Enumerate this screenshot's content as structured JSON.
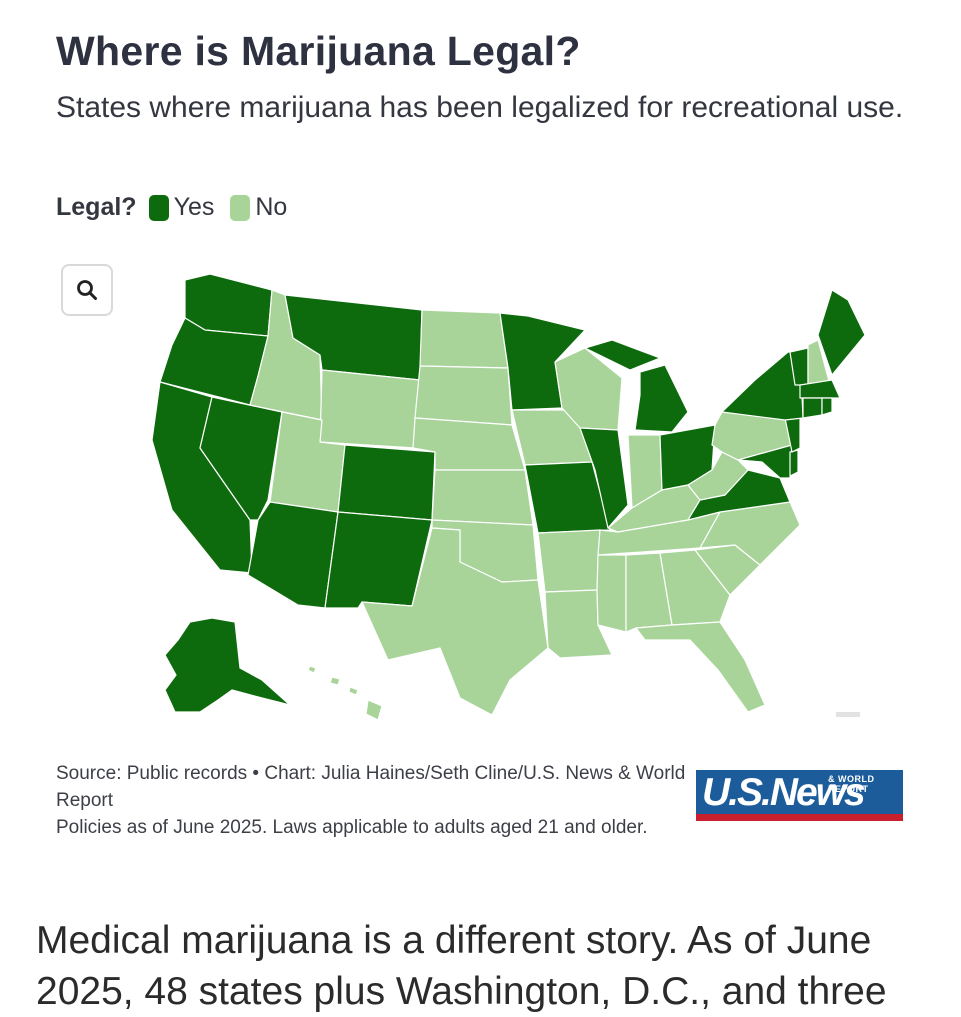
{
  "title": "Where is Marijuana Legal?",
  "subtitle": "States where marijuana has been legalized for recreational use.",
  "legend": {
    "title": "Legal?",
    "items": [
      {
        "label": "Yes",
        "color": "#0d6b0d"
      },
      {
        "label": "No",
        "color": "#a8d49a"
      }
    ]
  },
  "zoom": {
    "icon": "search-icon"
  },
  "map": {
    "legal_states": [
      "WA",
      "OR",
      "CA",
      "NV",
      "AZ",
      "MT",
      "CO",
      "NM",
      "MN",
      "MI",
      "IL",
      "MO",
      "OH",
      "VA",
      "MD",
      "DE",
      "NJ",
      "NY",
      "CT",
      "RI",
      "MA",
      "VT",
      "ME",
      "AK"
    ],
    "not_legal_states": [
      "ID",
      "UT",
      "WY",
      "ND",
      "SD",
      "NE",
      "KS",
      "OK",
      "TX",
      "IA",
      "WI",
      "AR",
      "LA",
      "MS",
      "AL",
      "GA",
      "FL",
      "SC",
      "NC",
      "TN",
      "KY",
      "IN",
      "WV",
      "PA",
      "NH",
      "HI"
    ]
  },
  "source": {
    "line1": "Source: Public records • Chart: Julia Haines/Seth Cline/U.S. News & World Report",
    "line2": "Policies as of June 2025. Laws applicable to adults aged 21 and older."
  },
  "logo": {
    "text": "U.S.News",
    "subtext": "& WORLD REPORT"
  },
  "body_text": "Medical marijuana is a different story. As of June 2025, 48 states plus Washington, D.C., and three"
}
